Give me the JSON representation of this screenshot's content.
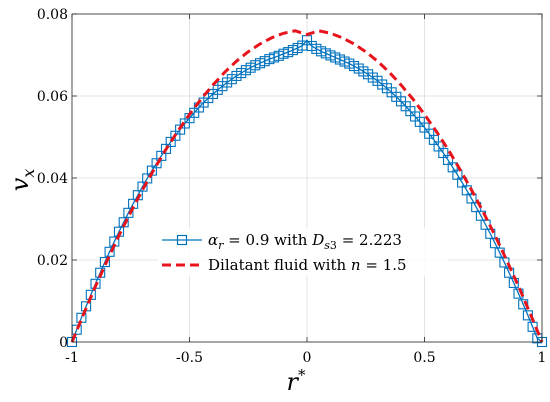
{
  "chart_data": {
    "type": "line",
    "title": "",
    "xlabel": "r*",
    "ylabel": "v_x",
    "xlim": [
      -1,
      1
    ],
    "ylim": [
      0,
      0.08
    ],
    "xticks": [
      -1,
      -0.5,
      0,
      0.5,
      1
    ],
    "xtick_labels": [
      "-1",
      "-0.5",
      "0",
      "0.5",
      "1"
    ],
    "yticks": [
      0,
      0.02,
      0.04,
      0.06,
      0.08
    ],
    "ytick_labels": [
      "0",
      "0.02",
      "0.04",
      "0.06",
      "0.08"
    ],
    "grid": true,
    "legend": "center",
    "series": [
      {
        "name": "αr = 0.9 with Ds3 = 2.223",
        "color": "#0072BD",
        "line_style": "solid",
        "marker": "square",
        "x": [
          -1,
          -0.98,
          -0.96,
          -0.94,
          -0.92,
          -0.9,
          -0.88,
          -0.86,
          -0.84,
          -0.82,
          -0.8,
          -0.78,
          -0.76,
          -0.74,
          -0.72,
          -0.7,
          -0.68,
          -0.66,
          -0.64,
          -0.62,
          -0.6,
          -0.58,
          -0.56,
          -0.54,
          -0.52,
          -0.5,
          -0.48,
          -0.46,
          -0.44,
          -0.42,
          -0.4,
          -0.38,
          -0.36,
          -0.34,
          -0.32,
          -0.3,
          -0.28,
          -0.26,
          -0.24,
          -0.22,
          -0.2,
          -0.18,
          -0.16,
          -0.14,
          -0.12,
          -0.1,
          -0.08,
          -0.06,
          -0.04,
          -0.02,
          0,
          0.02,
          0.04,
          0.06,
          0.08,
          0.1,
          0.12,
          0.14,
          0.16,
          0.18,
          0.2,
          0.22,
          0.24,
          0.26,
          0.28,
          0.3,
          0.32,
          0.34,
          0.36,
          0.38,
          0.4,
          0.42,
          0.44,
          0.46,
          0.48,
          0.5,
          0.52,
          0.54,
          0.56,
          0.58,
          0.6,
          0.62,
          0.64,
          0.66,
          0.68,
          0.7,
          0.72,
          0.74,
          0.76,
          0.78,
          0.8,
          0.82,
          0.84,
          0.86,
          0.88,
          0.9,
          0.92,
          0.94,
          0.96,
          0.98,
          1
        ],
        "y": [
          0,
          0.003,
          0.0059,
          0.0087,
          0.0115,
          0.0142,
          0.0169,
          0.0195,
          0.022,
          0.0245,
          0.0269,
          0.0292,
          0.0315,
          0.0337,
          0.0358,
          0.0379,
          0.0399,
          0.0418,
          0.0436,
          0.0454,
          0.0471,
          0.0488,
          0.0503,
          0.0518,
          0.0533,
          0.0546,
          0.0559,
          0.0572,
          0.0584,
          0.0595,
          0.0605,
          0.0615,
          0.0624,
          0.0633,
          0.0641,
          0.0649,
          0.0656,
          0.0663,
          0.0669,
          0.0675,
          0.068,
          0.0685,
          0.069,
          0.0694,
          0.0698,
          0.0703,
          0.0707,
          0.0712,
          0.0717,
          0.0723,
          0.0736,
          0.0722,
          0.0715,
          0.0709,
          0.0704,
          0.0699,
          0.0694,
          0.0689,
          0.0684,
          0.0679,
          0.0673,
          0.0667,
          0.066,
          0.0653,
          0.0645,
          0.0637,
          0.0628,
          0.0619,
          0.0609,
          0.0598,
          0.0587,
          0.0575,
          0.0563,
          0.055,
          0.0537,
          0.0523,
          0.0508,
          0.0493,
          0.0477,
          0.0461,
          0.0444,
          0.0426,
          0.0408,
          0.0389,
          0.037,
          0.035,
          0.0329,
          0.0308,
          0.0286,
          0.0264,
          0.0241,
          0.0218,
          0.0194,
          0.0169,
          0.0144,
          0.0118,
          0.0092,
          0.0065,
          0.0037,
          0.0009,
          0
        ]
      },
      {
        "name": "Dilatant fluid with n = 1.5",
        "color": "#E8141C",
        "line_style": "dashed",
        "marker": "none",
        "x": [
          -1,
          -0.95,
          -0.9,
          -0.85,
          -0.8,
          -0.75,
          -0.7,
          -0.65,
          -0.6,
          -0.55,
          -0.5,
          -0.45,
          -0.4,
          -0.35,
          -0.3,
          -0.25,
          -0.2,
          -0.15,
          -0.1,
          -0.05,
          0,
          0.05,
          0.1,
          0.15,
          0.2,
          0.25,
          0.3,
          0.35,
          0.4,
          0.45,
          0.5,
          0.55,
          0.6,
          0.65,
          0.7,
          0.75,
          0.8,
          0.85,
          0.9,
          0.95,
          1
        ],
        "y": [
          0,
          0.0069,
          0.0136,
          0.0199,
          0.026,
          0.0317,
          0.0371,
          0.0422,
          0.047,
          0.0514,
          0.0555,
          0.0593,
          0.0627,
          0.0658,
          0.0685,
          0.0708,
          0.0727,
          0.0742,
          0.0753,
          0.0759,
          0.075,
          0.0759,
          0.0753,
          0.0742,
          0.0727,
          0.0708,
          0.0685,
          0.0658,
          0.0627,
          0.0593,
          0.0555,
          0.0514,
          0.047,
          0.0422,
          0.0371,
          0.0317,
          0.026,
          0.0199,
          0.0136,
          0.0069,
          0
        ]
      }
    ]
  }
}
